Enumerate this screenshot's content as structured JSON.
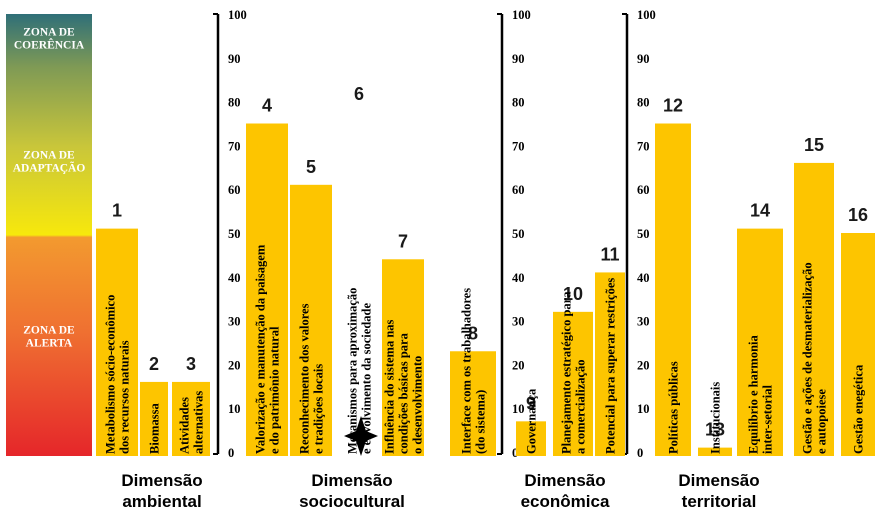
{
  "chart_data": {
    "type": "bar",
    "zones": [
      {
        "label_lines": [
          "ZONA DE",
          "COERÊNCIA"
        ],
        "from": 90,
        "to": 100,
        "color": "#3f7a7a"
      },
      {
        "label_lines": [
          "ZONA DE",
          "ADAPTAÇÃO"
        ],
        "from": 50,
        "to": 90,
        "color": "#c8c83a"
      },
      {
        "label_lines": [
          "ZONA DE",
          "ALERTA"
        ],
        "from": 0,
        "to": 50,
        "color": "#e8402a"
      }
    ],
    "axis_ticks": [
      0,
      10,
      20,
      30,
      40,
      50,
      60,
      70,
      80,
      90,
      100
    ],
    "ylim": [
      0,
      100
    ],
    "bar_color": "#fdc500",
    "groups": [
      {
        "title_lines": [
          "Dimensão",
          "ambiental"
        ],
        "bars": [
          {
            "number": "1",
            "value": 51,
            "label_lines": [
              "Metabolismo sócio-econômico",
              "dos recursos naturais"
            ]
          },
          {
            "number": "2",
            "value": 16,
            "label_lines": [
              "Biomassa"
            ]
          },
          {
            "number": "3",
            "value": 16,
            "label_lines": [
              "Atividades",
              "alternativas"
            ]
          }
        ]
      },
      {
        "title_lines": [
          "Dimensão",
          "sociocultural"
        ],
        "bars": [
          {
            "number": "4",
            "value": 75,
            "label_lines": [
              "Valorização e manutenção da paisagem",
              "e do patrimônio natural"
            ]
          },
          {
            "number": "5",
            "value": 61,
            "label_lines": [
              "Reconhecimento dos valores",
              "e tradições locais"
            ]
          },
          {
            "number": "6",
            "value": 0,
            "label_lines": [
              "Mecanismos para aproximação",
              "e envolvimento da sociedade"
            ]
          },
          {
            "number": "7",
            "value": 44,
            "label_lines": [
              "Influência do sistema nas",
              "condições básicas para",
              "o desenvolvimento"
            ]
          },
          {
            "number": "8",
            "value": 23,
            "label_lines": [
              "Interface com os trabalhadores",
              "(do sistema)"
            ]
          }
        ]
      },
      {
        "title_lines": [
          "Dimensão",
          "econômica"
        ],
        "bars": [
          {
            "number": "9",
            "value": 7,
            "label_lines": [
              "Governança"
            ]
          },
          {
            "number": "10",
            "value": 32,
            "label_lines": [
              "Planejamento estratégico para",
              "a comercialização"
            ]
          },
          {
            "number": "11",
            "value": 41,
            "label_lines": [
              "Potencial para superar restrições"
            ]
          }
        ]
      },
      {
        "title_lines": [
          "Dimensão",
          "territorial"
        ],
        "bars": [
          {
            "number": "12",
            "value": 75,
            "label_lines": [
              "Políticas públicas"
            ]
          },
          {
            "number": "13",
            "value": 1,
            "label_lines": [
              "Institucionais"
            ]
          },
          {
            "number": "14",
            "value": 51,
            "label_lines": [
              "Equilíbrio e harmonia",
              "inter-setorial"
            ]
          },
          {
            "number": "15",
            "value": 66,
            "label_lines": [
              "Gestão e ações de desmaterialização",
              "e autopoiese"
            ]
          },
          {
            "number": "16",
            "value": 50,
            "label_lines": [
              "Gestão enegética"
            ]
          }
        ]
      }
    ]
  }
}
